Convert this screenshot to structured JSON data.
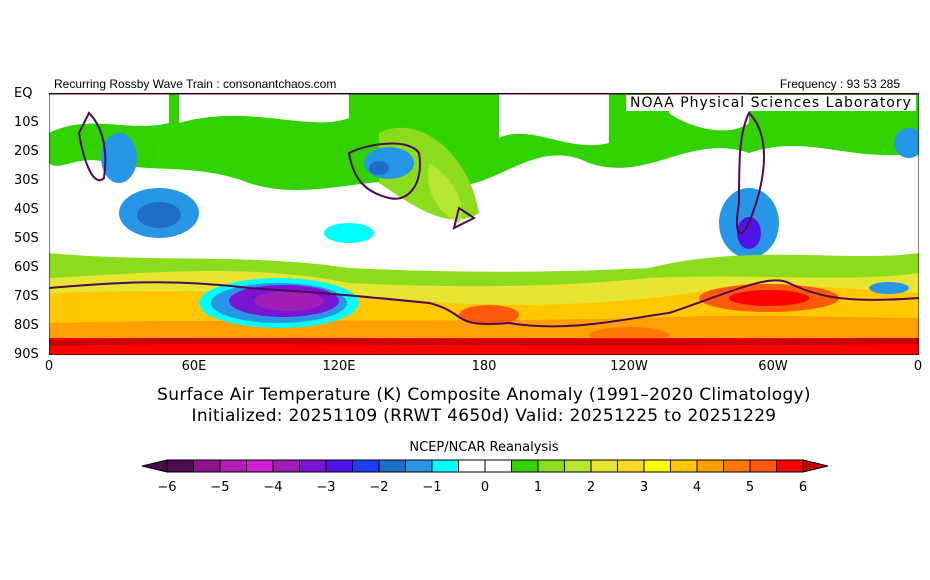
{
  "header": {
    "left": "Recurring Rossby Wave Train : consonantchaos.com",
    "right": "Frequency : 93 53 285",
    "lab": "NOAA Physical Sciences Laboratory"
  },
  "axes": {
    "lat_labels": [
      "EQ",
      "10S",
      "20S",
      "30S",
      "40S",
      "50S",
      "60S",
      "70S",
      "80S",
      "90S"
    ],
    "lon_labels": [
      "0",
      "60E",
      "120E",
      "180",
      "120W",
      "60W",
      "0"
    ]
  },
  "title": {
    "line1": "Surface Air Temperature (K) Composite Anomaly (1991–2020 Climatology)",
    "line2": "Initialized: 20251109 (RRWT 4650d) Valid: 20251225 to 20251229"
  },
  "colorbar": {
    "label": "NCEP/NCAR Reanalysis",
    "ticks": [
      "-6",
      "-5",
      "-4",
      "-3",
      "-2",
      "-1",
      "0",
      "1",
      "2",
      "3",
      "4",
      "5",
      "6"
    ],
    "colors": [
      "#500a50",
      "#8c148c",
      "#b41eb4",
      "#d21ed2",
      "#a01eb4",
      "#7814d2",
      "#5014e6",
      "#1e3cf0",
      "#1e6ec8",
      "#2896e6",
      "#00ffff",
      "#ffffff",
      "#ffffff",
      "#32d200",
      "#8cdc1e",
      "#b4e632",
      "#e6e632",
      "#ffd728",
      "#ffff00",
      "#ffc800",
      "#ffa000",
      "#ff7800",
      "#ff5a0a",
      "#ff0000"
    ],
    "under": "#4b0a4b",
    "over": "#c80000"
  }
}
